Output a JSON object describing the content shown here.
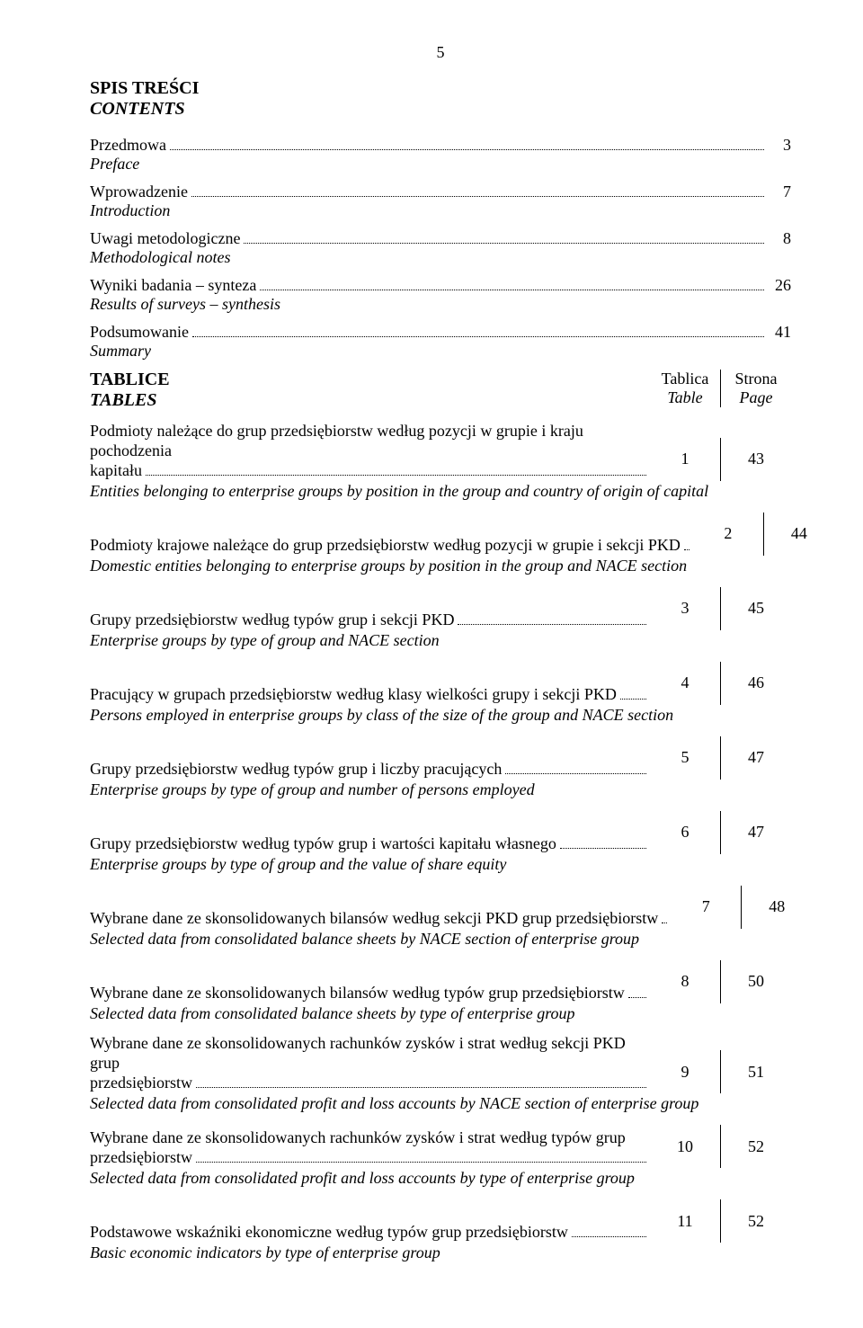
{
  "page_number": "5",
  "heading": {
    "pl": "SPIS TREŚCI",
    "en": "CONTENTS"
  },
  "simple_entries": [
    {
      "pl": "Przedmowa",
      "en": "Preface",
      "page": "3"
    },
    {
      "pl": "Wprowadzenie",
      "en": "Introduction",
      "page": "7"
    },
    {
      "pl": "Uwagi metodologiczne",
      "en": "Methodological notes",
      "page": "8"
    },
    {
      "pl": "Wyniki badania – synteza",
      "en": "Results of surveys – synthesis",
      "page": "26"
    },
    {
      "pl": "Podsumowanie",
      "en": "Summary",
      "page": "41"
    }
  ],
  "tables_heading": {
    "pl": "TABLICE",
    "en": "TABLES"
  },
  "col_headers": {
    "col1": {
      "pl": "Tablica",
      "en": "Table"
    },
    "col2": {
      "pl": "Strona",
      "en": "Page"
    }
  },
  "entries": [
    {
      "pl_pre": "Podmioty należące do grup przedsiębiorstw według pozycji w grupie i kraju pochodzenia",
      "pl_last": "kapitału",
      "en": "Entities belonging to enterprise groups by position in the group and country of origin of capital",
      "table": "1",
      "page": "43"
    },
    {
      "pl_pre": "",
      "pl_last": "Podmioty krajowe należące do grup przedsiębiorstw według pozycji w grupie i sekcji PKD",
      "en": "Domestic entities belonging to enterprise groups by position in the group and NACE section",
      "table": "2",
      "page": "44"
    },
    {
      "pl_pre": "",
      "pl_last": "Grupy przedsiębiorstw według typów grup i sekcji PKD",
      "en": "Enterprise groups by type of group and NACE section",
      "table": "3",
      "page": "45"
    },
    {
      "pl_pre": "",
      "pl_last": "Pracujący w grupach przedsiębiorstw według klasy wielkości grupy i sekcji PKD",
      "en": "Persons employed in enterprise groups by class of the size of the group and NACE section",
      "table": "4",
      "page": "46"
    },
    {
      "pl_pre": "",
      "pl_last": "Grupy przedsiębiorstw według typów grup i liczby pracujących",
      "en": "Enterprise groups by type of group and number of persons employed",
      "table": "5",
      "page": "47"
    },
    {
      "pl_pre": "",
      "pl_last": "Grupy przedsiębiorstw według typów grup i wartości kapitału własnego",
      "en": "Enterprise groups by type of group and the value of share equity",
      "table": "6",
      "page": "47"
    },
    {
      "pl_pre": "",
      "pl_last": "Wybrane dane ze skonsolidowanych bilansów według sekcji PKD grup przedsiębiorstw",
      "en": "Selected data from consolidated balance sheets by NACE section of enterprise group",
      "table": "7",
      "page": "48"
    },
    {
      "pl_pre": "",
      "pl_last": "Wybrane dane ze skonsolidowanych bilansów według typów grup przedsiębiorstw",
      "en": "Selected data from consolidated balance sheets by type of enterprise group",
      "table": "8",
      "page": "50"
    },
    {
      "pl_pre": "Wybrane dane ze skonsolidowanych rachunków zysków i strat według sekcji PKD grup",
      "pl_last": "przedsiębiorstw",
      "en": "Selected data from consolidated profit and loss accounts by NACE section of enterprise group",
      "table": "9",
      "page": "51"
    },
    {
      "pl_pre": "Wybrane dane ze skonsolidowanych rachunków zysków i strat według typów grup",
      "pl_last": "przedsiębiorstw",
      "en": "Selected data from consolidated profit and loss accounts by type of enterprise group",
      "table": "10",
      "page": "52"
    },
    {
      "pl_pre": "",
      "pl_last": "Podstawowe wskaźniki ekonomiczne według typów grup przedsiębiorstw",
      "en": "Basic economic indicators by type of enterprise group",
      "table": "11",
      "page": "52"
    }
  ]
}
